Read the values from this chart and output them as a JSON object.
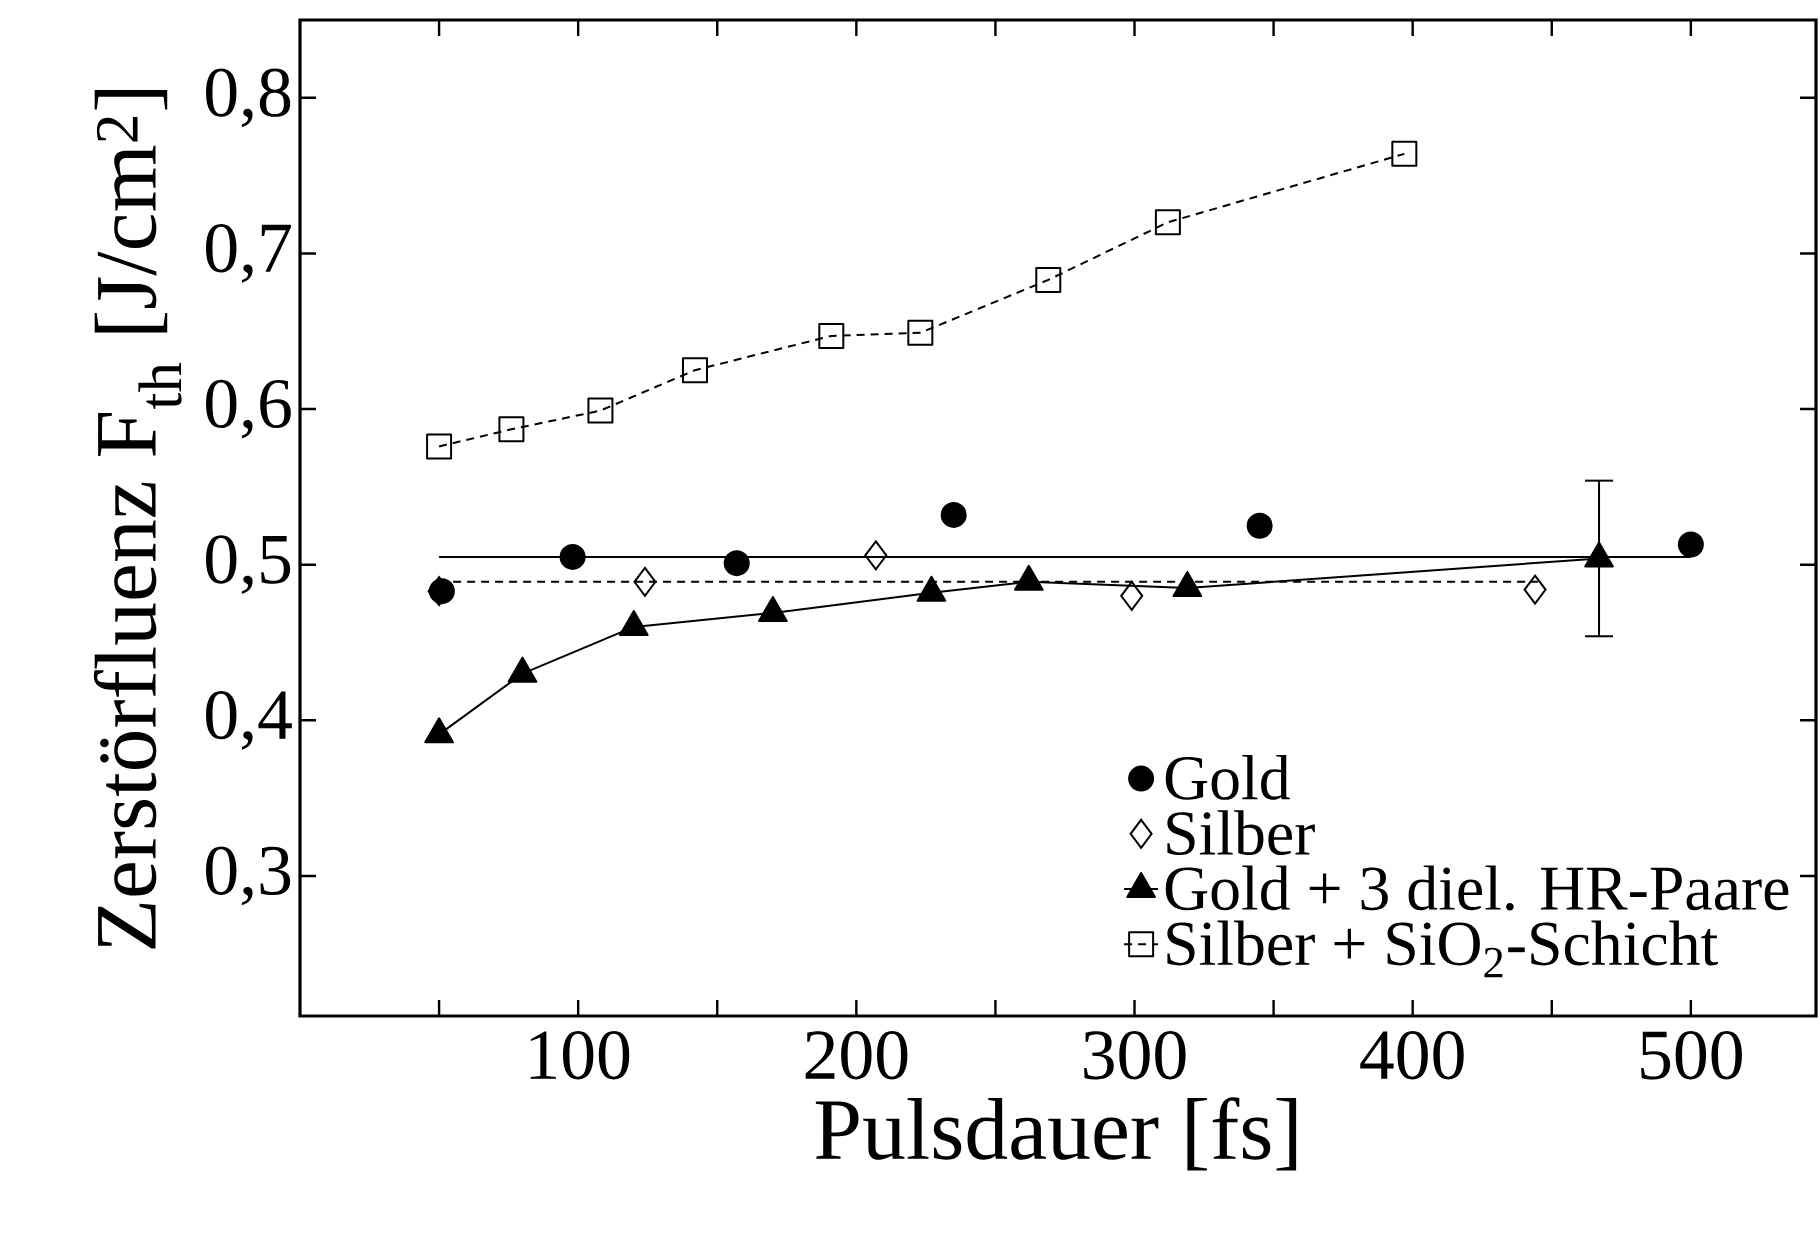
{
  "chart_data": {
    "type": "line",
    "xlabel": "Pulsdauer [fs]",
    "ylabel": "Zerstörfluenz F$_{th}$ [J/cm$^{2}$]",
    "xlim": [
      0,
      545
    ],
    "ylim": [
      0.21,
      0.85
    ],
    "xticks": [
      {
        "value": 50,
        "label": null
      },
      100,
      {
        "value": 150,
        "label": null
      },
      200,
      {
        "value": 250,
        "label": null
      },
      300,
      {
        "value": 350,
        "label": null
      },
      400,
      {
        "value": 450,
        "label": null
      },
      500
    ],
    "yticks": [
      {
        "value": 0.3,
        "label": "0,3"
      },
      {
        "value": 0.4,
        "label": "0,4"
      },
      {
        "value": 0.5,
        "label": "0,5"
      },
      {
        "value": 0.6,
        "label": "0,6"
      },
      {
        "value": 0.7,
        "label": "0,7"
      },
      {
        "value": 0.8,
        "label": "0,8"
      }
    ],
    "grid": false,
    "legend": "bottom right",
    "series": [
      {
        "name": "Gold",
        "type": "scatter",
        "color": "#000000",
        "marker": "circle",
        "x": [
          51,
          98,
          157,
          235,
          345,
          500
        ],
        "values": [
          0.483,
          0.505,
          0.501,
          0.532,
          0.525,
          0.513
        ]
      },
      {
        "name": "Silber",
        "type": "scatter",
        "color": "#000000",
        "marker": "diamond",
        "x": [
          50,
          124,
          207,
          299,
          444
        ],
        "values": [
          0.483,
          0.489,
          0.506,
          0.48,
          0.484
        ]
      },
      {
        "name": "Gold + 3 diel. HR-Paare",
        "color": "#000000",
        "marker": "triangle",
        "line_style": "solid",
        "x": [
          50,
          80,
          120,
          170,
          227,
          262,
          319,
          467
        ],
        "values": [
          0.391,
          0.43,
          0.46,
          0.469,
          0.482,
          0.489,
          0.485,
          0.504
        ],
        "errors": [
          null,
          null,
          null,
          null,
          null,
          null,
          null,
          0.05
        ]
      },
      {
        "name": "Silber + SiO$_{2}$-Schicht",
        "color": "#000000",
        "marker": "square",
        "line_style": "dashed",
        "x": [
          50,
          76,
          108,
          142,
          191,
          223,
          269,
          312,
          397
        ],
        "values": [
          0.576,
          0.587,
          0.599,
          0.625,
          0.647,
          0.649,
          0.683,
          0.72,
          0.764
        ]
      },
      {
        "color": "#000000",
        "marker": "none",
        "line_style": "solid",
        "x": [
          50,
          500
        ],
        "values": [
          0.505,
          0.505
        ]
      },
      {
        "color": "#000000",
        "marker": "none",
        "line_style": "dashed",
        "x": [
          50,
          445
        ],
        "values": [
          0.489,
          0.489
        ]
      }
    ]
  }
}
